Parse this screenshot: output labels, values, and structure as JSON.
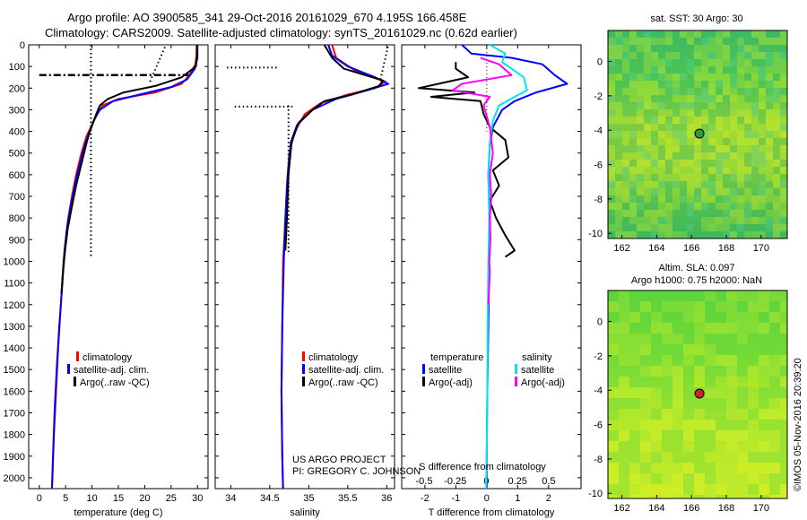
{
  "header": {
    "line1": "Argo profile: AO 3900585_341 29-Oct-2016 20161029_670 4.195S 166.458E",
    "line2": "Climatology: CARS2009. Satellite-adjusted climatology: synTS_20161029.nc (0.62d earlier)"
  },
  "credit": {
    "project": "US ARGO PROJECT",
    "pi": "PI: GREGORY C. JOHNSON",
    "stamp": "©IMOS 05-Nov-2016 20:39:20"
  },
  "colors": {
    "climatology": "#ff0000",
    "satellite": "#0000ff",
    "argo": "#000000",
    "sat_salinity": "#00e5ee",
    "argo_salinity": "#ff00ff"
  },
  "chart_data": [
    {
      "id": "temperature-profile",
      "type": "line",
      "xlabel": "temperature (deg C)",
      "ylabel": "",
      "xlim": [
        -2,
        32
      ],
      "ylim": [
        2050,
        0
      ],
      "x_ticks": [
        0,
        5,
        10,
        15,
        20,
        25,
        30
      ],
      "x_tick_labels": [
        "0",
        "5",
        "10",
        "15",
        "20",
        "25",
        "30"
      ],
      "y_ticks": [
        0,
        100,
        200,
        300,
        400,
        500,
        600,
        700,
        800,
        900,
        1000,
        1100,
        1200,
        1300,
        1400,
        1500,
        1600,
        1700,
        1800,
        1900,
        2000
      ],
      "legend": [
        "climatology",
        "satellite-adj. clim.",
        "Argo(..raw -QC)"
      ],
      "series": [
        {
          "name": "climatology",
          "color": "#ff0000",
          "points": [
            [
              29.8,
              0
            ],
            [
              29.8,
              50
            ],
            [
              29.6,
              90
            ],
            [
              28.5,
              140
            ],
            [
              27,
              180
            ],
            [
              22,
              220
            ],
            [
              15,
              250
            ],
            [
              12,
              280
            ],
            [
              11,
              320
            ],
            [
              10,
              370
            ],
            [
              9,
              420
            ],
            [
              8,
              500
            ],
            [
              7,
              600
            ],
            [
              6.2,
              700
            ],
            [
              5.5,
              800
            ],
            [
              5,
              900
            ],
            [
              4.6,
              1000
            ],
            [
              4.1,
              1200
            ],
            [
              3.6,
              1400
            ],
            [
              3.2,
              1600
            ],
            [
              2.8,
              1800
            ],
            [
              2.5,
              2000
            ],
            [
              2.4,
              2050
            ]
          ]
        },
        {
          "name": "satellite-adj. clim.",
          "color": "#0000ff",
          "points": [
            [
              30,
              0
            ],
            [
              30,
              60
            ],
            [
              29.5,
              110
            ],
            [
              28,
              160
            ],
            [
              25,
              195
            ],
            [
              19,
              230
            ],
            [
              14,
              260
            ],
            [
              11.5,
              300
            ],
            [
              10.5,
              340
            ],
            [
              9.7,
              390
            ],
            [
              8.8,
              450
            ],
            [
              7.8,
              540
            ],
            [
              6.8,
              640
            ],
            [
              6,
              740
            ],
            [
              5.3,
              840
            ],
            [
              4.8,
              950
            ],
            [
              4.4,
              1100
            ],
            [
              3.8,
              1300
            ],
            [
              3.3,
              1500
            ],
            [
              2.9,
              1700
            ],
            [
              2.6,
              1900
            ],
            [
              2.4,
              2050
            ]
          ]
        },
        {
          "name": "Argo(..raw -QC)",
          "color": "#000000",
          "points": [
            [
              30,
              0
            ],
            [
              29.9,
              50
            ],
            [
              29.7,
              100
            ],
            [
              27,
              150
            ],
            [
              22,
              190
            ],
            [
              16,
              220
            ],
            [
              13,
              250
            ],
            [
              11.5,
              280
            ],
            [
              10.8,
              320
            ],
            [
              10.2,
              360
            ],
            [
              9.6,
              400
            ],
            [
              9,
              450
            ],
            [
              8,
              550
            ],
            [
              7,
              650
            ],
            [
              6.1,
              760
            ],
            [
              5.4,
              850
            ],
            [
              4.9,
              950
            ],
            [
              4.5,
              1050
            ],
            [
              4.2,
              1150
            ]
          ]
        }
      ],
      "dotted_lines": [
        {
          "x_values": [
            9.8,
            9.8
          ],
          "y_values": [
            0,
            980
          ]
        },
        {
          "x_values": [
            21,
            24
          ],
          "y_values": [
            170,
            0
          ]
        }
      ],
      "dashdot_line": {
        "x_values": [
          0,
          29
        ],
        "y_values": [
          140,
          140
        ]
      }
    },
    {
      "id": "salinity-profile",
      "type": "line",
      "xlabel": "salinity",
      "ylabel": "",
      "xlim": [
        33.8,
        36.1
      ],
      "ylim": [
        2050,
        0
      ],
      "x_ticks": [
        34,
        34.5,
        35,
        35.5,
        36
      ],
      "x_tick_labels": [
        "34",
        "34.5",
        "35",
        "35.5",
        "36"
      ],
      "legend": [
        "climatology",
        "satellite-adj. clim.",
        "Argo(..raw -QC)"
      ],
      "series": [
        {
          "name": "climatology",
          "color": "#ff0000",
          "points": [
            [
              35.3,
              0
            ],
            [
              35.35,
              60
            ],
            [
              35.6,
              120
            ],
            [
              35.98,
              170
            ],
            [
              35.85,
              200
            ],
            [
              35.5,
              230
            ],
            [
              35.15,
              270
            ],
            [
              34.95,
              320
            ],
            [
              34.82,
              400
            ],
            [
              34.75,
              500
            ],
            [
              34.72,
              650
            ],
            [
              34.7,
              800
            ],
            [
              34.67,
              1000
            ],
            [
              34.66,
              1300
            ],
            [
              34.65,
              1600
            ],
            [
              34.66,
              1900
            ],
            [
              34.67,
              2050
            ]
          ]
        },
        {
          "name": "satellite-adj. clim.",
          "color": "#0000ff",
          "points": [
            [
              35.25,
              0
            ],
            [
              35.3,
              50
            ],
            [
              35.5,
              100
            ],
            [
              35.85,
              150
            ],
            [
              36.02,
              180
            ],
            [
              35.75,
              210
            ],
            [
              35.35,
              250
            ],
            [
              35.05,
              300
            ],
            [
              34.85,
              370
            ],
            [
              34.77,
              450
            ],
            [
              34.73,
              600
            ],
            [
              34.7,
              800
            ],
            [
              34.68,
              1000
            ],
            [
              34.66,
              1300
            ],
            [
              34.65,
              1600
            ],
            [
              34.66,
              1900
            ],
            [
              34.67,
              2050
            ]
          ]
        },
        {
          "name": "Argo(..raw -QC)",
          "color": "#000000",
          "points": [
            [
              35.2,
              0
            ],
            [
              35.3,
              60
            ],
            [
              35.45,
              110
            ],
            [
              35.95,
              165
            ],
            [
              35.9,
              190
            ],
            [
              35.55,
              230
            ],
            [
              35.2,
              260
            ],
            [
              35.05,
              300
            ],
            [
              34.87,
              360
            ],
            [
              34.78,
              450
            ],
            [
              34.74,
              600
            ],
            [
              34.72,
              800
            ],
            [
              34.7,
              950
            ]
          ]
        }
      ],
      "dotted_lines": [
        {
          "x_values": [
            34.74,
            34.74
          ],
          "y_values": [
            280,
            970
          ]
        },
        {
          "x_values": [
            35.92,
            36.02
          ],
          "y_values": [
            160,
            0
          ]
        }
      ],
      "dashed_hlines": [
        {
          "x_values": [
            33.95,
            34.6
          ],
          "y": 105
        },
        {
          "x_values": [
            34.05,
            34.8
          ],
          "y": 285
        }
      ]
    },
    {
      "id": "difference-profile",
      "type": "line",
      "xlabel": "T difference from climatology",
      "xlabel_top": "S difference from climatology",
      "ylabel": "",
      "xlim": [
        -2.75,
        3.05
      ],
      "ylim": [
        2050,
        0
      ],
      "x_ticks": [
        -2,
        -1,
        0,
        1,
        2
      ],
      "x_tick_labels": [
        "-2",
        "-1",
        "0",
        "1",
        "2"
      ],
      "x_ticks_top": [
        -0.5,
        -0.25,
        0,
        0.25,
        0.5
      ],
      "x_tick_labels_top": [
        "-0.5",
        "-0.25",
        "0",
        "0.25",
        "0.5"
      ],
      "legend_left_title": "temperature",
      "legend_right_title": "salinity",
      "legend": [
        "satellite",
        "Argo(-adj)",
        "satellite",
        "Argo(-adj)"
      ],
      "series": [
        {
          "name": "satellite",
          "color": "#0000ff",
          "points": [
            [
              -0.8,
              0
            ],
            [
              -0.5,
              40
            ],
            [
              0.8,
              60
            ],
            [
              1.8,
              90
            ],
            [
              2.2,
              140
            ],
            [
              2.6,
              180
            ],
            [
              1.6,
              220
            ],
            [
              0.9,
              260
            ],
            [
              0.5,
              300
            ],
            [
              0.2,
              380
            ],
            [
              0.1,
              460
            ],
            [
              0.05,
              600
            ],
            [
              0.1,
              800
            ],
            [
              0.08,
              1000
            ],
            [
              0.05,
              1300
            ],
            [
              0.02,
              1600
            ],
            [
              0.0,
              1900
            ],
            [
              0.0,
              2050
            ]
          ]
        },
        {
          "name": "Argo(-adj)",
          "color": "#000000",
          "points": [
            [
              -1,
              80
            ],
            [
              -1,
              110
            ],
            [
              -0.6,
              150
            ],
            [
              -2.2,
              200
            ],
            [
              -0.4,
              220
            ],
            [
              -1.8,
              240
            ],
            [
              -0.2,
              260
            ],
            [
              -0.1,
              320
            ],
            [
              0.1,
              380
            ],
            [
              0.6,
              440
            ],
            [
              0.7,
              520
            ],
            [
              0.2,
              580
            ],
            [
              0.4,
              650
            ],
            [
              0.1,
              720
            ],
            [
              0.3,
              800
            ],
            [
              0.6,
              880
            ],
            [
              0.9,
              950
            ],
            [
              0.6,
              980
            ]
          ]
        },
        {
          "name": "satellite",
          "color": "#00e5ee",
          "points": [
            [
              0.1,
              0
            ],
            [
              0.6,
              40
            ],
            [
              0.5,
              80
            ],
            [
              1.2,
              150
            ],
            [
              1.3,
              210
            ],
            [
              0.9,
              240
            ],
            [
              0.4,
              280
            ],
            [
              0.2,
              350
            ],
            [
              0.1,
              450
            ],
            [
              0.05,
              600
            ],
            [
              0.08,
              800
            ],
            [
              0.05,
              1000
            ],
            [
              0.03,
              1300
            ],
            [
              0.02,
              1600
            ],
            [
              0.0,
              1900
            ],
            [
              -0.02,
              2050
            ]
          ]
        },
        {
          "name": "Argo(-adj)",
          "color": "#ff00ff",
          "points": [
            [
              -0.2,
              60
            ],
            [
              0.4,
              90
            ],
            [
              0.8,
              140
            ],
            [
              -0.8,
              180
            ],
            [
              -1.1,
              210
            ],
            [
              0.1,
              240
            ],
            [
              -0.1,
              280
            ],
            [
              0.1,
              380
            ],
            [
              0.2,
              500
            ],
            [
              0.1,
              600
            ],
            [
              0.15,
              700
            ],
            [
              0.1,
              800
            ],
            [
              0.12,
              900
            ],
            [
              0.08,
              1000
            ],
            [
              0.1,
              1050
            ],
            [
              0.05,
              1200
            ]
          ]
        }
      ],
      "dotted_vline": {
        "x_values": [
          0,
          0
        ],
        "y_values": [
          0,
          400
        ]
      }
    },
    {
      "id": "sst-map",
      "type": "heatmap",
      "title": "sat. SST: 30 Argo: 30",
      "xlim": [
        161.2,
        171.5
      ],
      "ylim": [
        -10.3,
        1.8
      ],
      "x_ticks": [
        162,
        164,
        166,
        168,
        170
      ],
      "x_tick_labels": [
        "162",
        "164",
        "166",
        "168",
        "170"
      ],
      "y_ticks": [
        0,
        -2,
        -4,
        -6,
        -8,
        -10
      ],
      "y_tick_labels": [
        "0",
        "-2",
        "-4",
        "-6",
        "-8",
        "-10"
      ],
      "marker": {
        "lon": 166.458,
        "lat": -4.195
      }
    },
    {
      "id": "sla-map",
      "type": "heatmap",
      "title": "Altim. SLA: 0.097",
      "subtitle": "Argo h1000: 0.75 h2000: NaN",
      "xlim": [
        161.2,
        171.5
      ],
      "ylim": [
        -10.3,
        1.8
      ],
      "x_ticks": [
        162,
        164,
        166,
        168,
        170
      ],
      "x_tick_labels": [
        "162",
        "164",
        "166",
        "168",
        "170"
      ],
      "y_ticks": [
        0,
        -2,
        -4,
        -6,
        -8,
        -10
      ],
      "y_tick_labels": [
        "0",
        "-2",
        "-4",
        "-6",
        "-8",
        "-10"
      ],
      "marker": {
        "lon": 166.458,
        "lat": -4.195
      }
    }
  ]
}
